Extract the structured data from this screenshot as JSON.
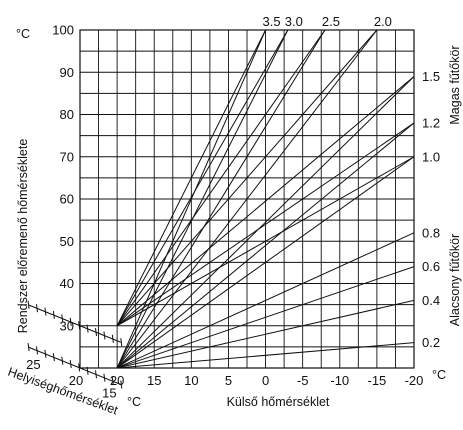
{
  "chart_data": {
    "type": "line",
    "y_unit": "°C",
    "x_unit": "°C",
    "ylabel": "Rendszer előremenő hőmérséklete",
    "xlabel": "Külső hőmérséklet",
    "room_axis_label": "Helyiséghőmérséklet",
    "right_label_high": "Magas fűtőkör",
    "right_label_low": "Alacsony fűtőkör",
    "x_ticks": [
      20,
      15,
      10,
      5,
      0,
      -5,
      -10,
      -15,
      -20
    ],
    "x_tick_labels": [
      "20",
      "15",
      "10",
      "5",
      "0",
      "-5",
      "-10",
      "-15",
      "-20"
    ],
    "y_ticks": [
      30,
      40,
      50,
      60,
      70,
      80,
      90,
      100
    ],
    "y_tick_labels": [
      "30",
      "40",
      "50",
      "60",
      "70",
      "80",
      "90",
      "100"
    ],
    "room_ticks": [
      25,
      20,
      15
    ],
    "room_tick_labels": [
      "25",
      "20",
      "15"
    ],
    "xlim": [
      25,
      -20
    ],
    "ylim": [
      20,
      100
    ],
    "top_curve_labels": [
      "3.5",
      "3.0",
      "2.5",
      "2.0"
    ],
    "right_curve_labels": [
      "1.5",
      "1.2",
      "1.0",
      "0.8",
      "0.6",
      "0.4",
      "0.2"
    ],
    "series": [
      {
        "name": "3.5",
        "start": [
          20,
          20
        ],
        "end": [
          0,
          100
        ]
      },
      {
        "name": "3.0",
        "start": [
          20,
          20
        ],
        "end": [
          -3,
          100
        ]
      },
      {
        "name": "2.5",
        "start": [
          20,
          20
        ],
        "end": [
          -8,
          100
        ]
      },
      {
        "name": "2.0",
        "start": [
          20,
          20
        ],
        "end": [
          -15,
          100
        ]
      },
      {
        "name": "1.5",
        "start": [
          20,
          20
        ],
        "end": [
          -20,
          89
        ]
      },
      {
        "name": "1.2",
        "start": [
          20,
          20
        ],
        "end": [
          -20,
          78
        ]
      },
      {
        "name": "1.0",
        "start": [
          20,
          20
        ],
        "end": [
          -20,
          70
        ]
      },
      {
        "name": "0.8",
        "start": [
          20,
          20
        ],
        "end": [
          -20,
          52
        ]
      },
      {
        "name": "0.6",
        "start": [
          20,
          20
        ],
        "end": [
          -20,
          44
        ]
      },
      {
        "name": "0.4",
        "start": [
          20,
          20
        ],
        "end": [
          -20,
          36
        ]
      },
      {
        "name": "0.2",
        "start": [
          20,
          20
        ],
        "end": [
          -20,
          26
        ]
      },
      {
        "start": [
          20,
          30
        ],
        "end": [
          0,
          100
        ]
      },
      {
        "start": [
          20,
          30
        ],
        "end": [
          -3,
          100
        ]
      },
      {
        "start": [
          20,
          30
        ],
        "end": [
          -8,
          100
        ]
      },
      {
        "start": [
          20,
          30
        ],
        "end": [
          -15,
          100
        ]
      },
      {
        "start": [
          20,
          30
        ],
        "end": [
          -20,
          89
        ]
      },
      {
        "start": [
          20,
          30
        ],
        "end": [
          -20,
          78
        ]
      },
      {
        "start": [
          20,
          30
        ],
        "end": [
          -20,
          70
        ]
      }
    ]
  }
}
